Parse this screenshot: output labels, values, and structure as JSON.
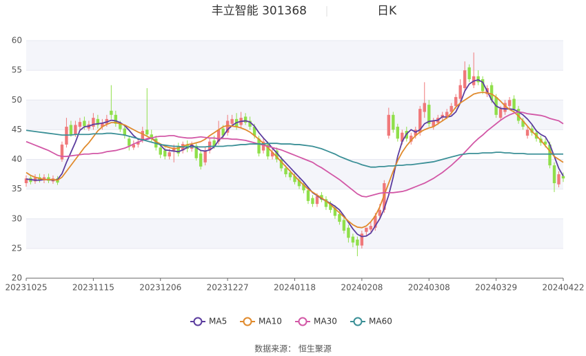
{
  "chart_data": {
    "type": "candlestick",
    "title": "丰立智能 301368",
    "subtitle": "日K",
    "source": "数据来源： 恒生聚源",
    "categories": [
      "20231025",
      null,
      null,
      null,
      null,
      null,
      null,
      null,
      null,
      null,
      null,
      null,
      null,
      null,
      null,
      "20231115",
      null,
      null,
      null,
      null,
      null,
      null,
      null,
      null,
      null,
      null,
      null,
      null,
      null,
      null,
      "20231206",
      null,
      null,
      null,
      null,
      null,
      null,
      null,
      null,
      null,
      null,
      null,
      null,
      null,
      null,
      "20231227",
      null,
      null,
      null,
      null,
      null,
      null,
      null,
      null,
      null,
      null,
      null,
      null,
      null,
      null,
      "20240118",
      null,
      null,
      null,
      null,
      null,
      null,
      null,
      null,
      null,
      null,
      null,
      null,
      null,
      null,
      "20240208",
      null,
      null,
      null,
      null,
      null,
      null,
      null,
      null,
      null,
      null,
      null,
      null,
      null,
      null,
      "20240308",
      null,
      null,
      null,
      null,
      null,
      null,
      null,
      null,
      null,
      null,
      null,
      null,
      null,
      null,
      "20240329",
      null,
      null,
      null,
      null,
      null,
      null,
      null,
      null,
      null,
      null,
      null,
      null,
      null,
      null,
      "20240422"
    ],
    "open": [
      36.0,
      36.9,
      36.3,
      37.0,
      36.5,
      37.0,
      36.3,
      36.8,
      40.0,
      42.5,
      45.8,
      44.2,
      45.5,
      46.5,
      45.2,
      45.5,
      46.8,
      45.5,
      46.0,
      48.2,
      47.5,
      46.0,
      45.2,
      43.5,
      42.0,
      42.5,
      43.2,
      45.0,
      44.2,
      43.5,
      42.0,
      41.5,
      40.5,
      41.5,
      42.2,
      41.5,
      42.5,
      41.8,
      42.3,
      41.0,
      39.5,
      41.5,
      43.2,
      43.0,
      45.2,
      44.5,
      46.0,
      46.8,
      45.8,
      47.2,
      46.5,
      45.5,
      43.5,
      41.5,
      42.5,
      40.5,
      41.5,
      40.0,
      38.5,
      37.8,
      37.2,
      36.5,
      35.8,
      34.8,
      33.5,
      32.5,
      34.0,
      33.3,
      32.5,
      31.8,
      30.8,
      29.8,
      28.5,
      27.0,
      26.5,
      25.5,
      27.8,
      28.2,
      28.5,
      30.5,
      31.5,
      44.0,
      47.5,
      45.5,
      43.0,
      44.8,
      43.0,
      44.0,
      44.5,
      48.0,
      49.2,
      45.5,
      46.2,
      47.0,
      47.2,
      48.0,
      49.0,
      50.2,
      52.0,
      55.5,
      52.5,
      54.0,
      53.5,
      51.0,
      52.5,
      50.5,
      47.0,
      48.0,
      49.0,
      50.2,
      48.5,
      46.5,
      44.0,
      45.2,
      44.5,
      43.5,
      43.0,
      42.5,
      39.0,
      35.8,
      37.2
    ],
    "close": [
      36.8,
      36.2,
      36.9,
      36.5,
      37.0,
      36.4,
      36.8,
      36.1,
      42.5,
      45.5,
      44.2,
      45.8,
      46.3,
      45.6,
      45.9,
      47.0,
      45.8,
      46.1,
      46.8,
      47.5,
      46.0,
      45.1,
      44.0,
      42.3,
      42.5,
      43.0,
      44.8,
      44.2,
      43.5,
      42.0,
      40.8,
      40.5,
      41.2,
      42.0,
      41.0,
      42.6,
      41.8,
      42.5,
      40.2,
      38.8,
      41.5,
      43.0,
      42.2,
      45.0,
      44.0,
      46.5,
      46.8,
      45.5,
      47.0,
      46.2,
      45.5,
      44.0,
      41.0,
      43.0,
      40.5,
      41.2,
      40.0,
      38.5,
      37.5,
      37.0,
      36.2,
      35.5,
      34.8,
      33.0,
      32.5,
      33.8,
      33.2,
      32.0,
      31.5,
      30.5,
      29.5,
      28.0,
      26.8,
      26.0,
      25.5,
      27.5,
      28.5,
      28.8,
      30.5,
      31.5,
      36.0,
      47.5,
      45.0,
      43.5,
      44.5,
      43.5,
      44.0,
      45.0,
      48.5,
      49.5,
      46.0,
      46.5,
      47.0,
      47.5,
      48.0,
      49.0,
      50.5,
      52.5,
      55.0,
      53.5,
      54.0,
      53.0,
      51.5,
      52.0,
      50.0,
      47.5,
      48.5,
      49.5,
      50.0,
      48.5,
      46.5,
      45.5,
      45.0,
      44.5,
      43.5,
      42.8,
      42.5,
      39.0,
      36.0,
      37.5,
      36.8
    ],
    "low": [
      35.4,
      35.8,
      35.9,
      36.1,
      36.0,
      36.0,
      35.9,
      35.7,
      39.6,
      42.0,
      43.8,
      43.8,
      45.0,
      45.0,
      44.8,
      45.0,
      45.2,
      45.0,
      45.5,
      46.8,
      45.5,
      44.6,
      43.5,
      41.5,
      41.6,
      42.0,
      42.8,
      43.8,
      43.0,
      41.5,
      40.2,
      40.0,
      40.0,
      39.5,
      40.5,
      41.0,
      41.2,
      41.3,
      39.8,
      38.3,
      39.0,
      41.0,
      41.8,
      42.5,
      43.5,
      44.0,
      45.5,
      45.0,
      45.3,
      45.8,
      45.0,
      43.5,
      40.5,
      41.0,
      40.0,
      40.0,
      39.5,
      38.0,
      37.0,
      36.5,
      35.8,
      35.0,
      34.3,
      32.5,
      32.0,
      32.0,
      32.8,
      31.5,
      31.0,
      30.0,
      29.0,
      27.5,
      26.0,
      25.2,
      23.7,
      25.0,
      27.0,
      27.8,
      28.0,
      30.0,
      31.0,
      43.5,
      44.5,
      43.0,
      42.5,
      43.0,
      42.5,
      43.5,
      44.0,
      47.0,
      45.5,
      45.0,
      45.8,
      46.5,
      46.8,
      47.5,
      48.5,
      49.8,
      51.5,
      53.0,
      52.0,
      52.5,
      51.0,
      50.5,
      49.5,
      47.0,
      46.5,
      47.5,
      48.5,
      48.0,
      46.0,
      45.0,
      43.5,
      44.0,
      43.0,
      42.3,
      42.0,
      38.5,
      34.5,
      35.3,
      36.2
    ],
    "high": [
      37.3,
      37.4,
      37.5,
      37.6,
      37.5,
      37.6,
      37.3,
      37.2,
      43.0,
      47.0,
      46.5,
      46.5,
      47.0,
      47.2,
      46.5,
      47.8,
      47.5,
      46.8,
      47.5,
      52.5,
      48.2,
      46.5,
      45.8,
      44.0,
      43.2,
      43.6,
      45.5,
      52.0,
      45.0,
      44.0,
      42.5,
      42.0,
      41.8,
      42.5,
      42.8,
      43.0,
      43.2,
      43.0,
      42.8,
      41.5,
      42.0,
      43.5,
      44.0,
      46.5,
      45.8,
      47.5,
      47.5,
      47.8,
      48.0,
      47.8,
      47.2,
      46.0,
      44.0,
      43.5,
      43.0,
      41.8,
      42.0,
      40.5,
      39.0,
      38.2,
      37.8,
      37.0,
      36.3,
      35.3,
      34.0,
      34.3,
      34.5,
      33.8,
      33.0,
      32.3,
      31.3,
      30.3,
      29.0,
      27.5,
      27.0,
      28.0,
      28.5,
      29.5,
      31.0,
      32.5,
      36.5,
      48.7,
      48.0,
      46.0,
      45.0,
      45.5,
      44.5,
      45.5,
      49.0,
      53.0,
      50.0,
      47.0,
      47.5,
      48.0,
      48.5,
      49.5,
      51.0,
      53.5,
      56.5,
      56.0,
      58.0,
      55.0,
      54.0,
      52.5,
      53.0,
      51.0,
      49.0,
      50.0,
      50.5,
      50.8,
      49.0,
      47.0,
      45.5,
      45.8,
      45.0,
      44.0,
      43.5,
      43.0,
      39.5,
      38.0,
      37.8
    ],
    "up_color": "#f0787a",
    "down_color": "#8fdf4a",
    "series": [
      {
        "name": "MA5",
        "color": "#5b3c9e",
        "values": [
          36.7,
          36.6,
          36.5,
          36.5,
          36.6,
          36.6,
          36.5,
          36.6,
          37.6,
          39.5,
          41.2,
          42.9,
          44.9,
          45.5,
          45.6,
          45.9,
          46.0,
          46.1,
          46.3,
          46.6,
          46.5,
          46.2,
          45.7,
          44.9,
          44.0,
          43.4,
          43.3,
          43.4,
          43.6,
          43.0,
          42.4,
          41.6,
          41.5,
          41.4,
          41.3,
          41.6,
          42.0,
          42.4,
          42.0,
          41.5,
          41.4,
          41.6,
          42.1,
          43.2,
          43.9,
          45.0,
          45.7,
          46.2,
          46.4,
          46.5,
          46.3,
          45.6,
          44.5,
          43.6,
          42.8,
          41.9,
          41.1,
          40.2,
          39.4,
          38.6,
          37.8,
          37.0,
          36.2,
          35.3,
          34.4,
          33.9,
          33.4,
          33.0,
          32.6,
          32.1,
          31.5,
          30.5,
          29.4,
          28.3,
          27.4,
          27.0,
          27.1,
          27.6,
          28.8,
          30.0,
          31.7,
          34.0,
          37.0,
          40.5,
          43.0,
          44.3,
          45.0,
          44.6,
          45.0,
          46.0,
          46.4,
          46.5,
          46.6,
          47.2,
          47.1,
          47.3,
          48.0,
          49.5,
          51.5,
          52.7,
          53.2,
          53.4,
          53.0,
          51.5,
          50.0,
          49.0,
          48.6,
          48.5,
          48.5,
          48.4,
          48.0,
          47.5,
          46.8,
          45.9,
          44.8,
          44.2,
          43.8,
          42.5,
          40.5,
          38.5,
          37.2
        ]
      },
      {
        "name": "MA10",
        "color": "#e08a2c",
        "values": [
          37.8,
          37.3,
          37.0,
          36.8,
          36.6,
          36.6,
          36.6,
          36.5,
          37.0,
          38.0,
          39.0,
          40.0,
          41.0,
          42.0,
          42.8,
          43.8,
          44.8,
          45.5,
          45.9,
          46.2,
          46.2,
          46.0,
          45.8,
          45.4,
          45.0,
          44.6,
          44.3,
          43.9,
          43.5,
          43.0,
          42.6,
          42.2,
          42.0,
          41.8,
          41.9,
          42.2,
          42.5,
          42.6,
          42.8,
          43.0,
          43.4,
          44.0,
          44.5,
          45.0,
          45.5,
          45.7,
          45.6,
          45.5,
          45.3,
          45.0,
          44.6,
          44.0,
          43.4,
          42.7,
          42.0,
          41.2,
          40.4,
          39.6,
          38.8,
          38.0,
          37.2,
          36.4,
          35.7,
          35.0,
          34.5,
          34.0,
          33.5,
          33.0,
          32.4,
          31.7,
          31.0,
          30.3,
          29.6,
          29.0,
          28.6,
          28.5,
          28.8,
          29.5,
          30.5,
          32.0,
          34.0,
          36.0,
          38.0,
          39.8,
          41.2,
          42.3,
          43.2,
          44.0,
          44.6,
          45.0,
          45.3,
          45.5,
          46.0,
          46.5,
          47.0,
          47.8,
          48.8,
          49.5,
          50.0,
          50.5,
          51.0,
          51.2,
          51.3,
          51.2,
          51.0,
          50.5,
          49.8,
          49.0,
          48.4,
          48.0,
          47.3,
          46.5,
          45.6,
          44.7,
          44.0,
          43.2,
          42.3,
          41.4,
          40.5,
          40.0,
          39.5
        ]
      },
      {
        "name": "MA30",
        "color": "#d257a6",
        "values": [
          43.0,
          42.7,
          42.4,
          42.1,
          41.8,
          41.5,
          41.1,
          40.7,
          40.5,
          40.5,
          40.6,
          40.7,
          40.8,
          40.9,
          40.9,
          41.0,
          41.0,
          41.1,
          41.3,
          41.4,
          41.5,
          41.7,
          41.9,
          42.2,
          42.6,
          42.9,
          43.2,
          43.5,
          43.6,
          43.8,
          43.9,
          43.9,
          44.0,
          44.0,
          43.8,
          43.7,
          43.6,
          43.6,
          43.7,
          43.8,
          43.7,
          43.6,
          43.6,
          43.5,
          43.5,
          43.5,
          43.4,
          43.4,
          43.3,
          43.2,
          43.0,
          42.8,
          42.6,
          42.4,
          42.2,
          42.0,
          41.8,
          41.6,
          41.3,
          41.0,
          40.7,
          40.4,
          40.1,
          39.8,
          39.5,
          39.0,
          38.6,
          38.1,
          37.6,
          37.1,
          36.6,
          36.0,
          35.4,
          34.8,
          34.2,
          33.8,
          33.7,
          33.9,
          34.1,
          34.3,
          34.4,
          34.4,
          34.4,
          34.5,
          34.6,
          34.8,
          35.1,
          35.4,
          35.7,
          36.0,
          36.4,
          36.8,
          37.3,
          37.8,
          38.4,
          39.0,
          39.7,
          40.4,
          41.2,
          42.0,
          42.8,
          43.5,
          44.1,
          44.8,
          45.4,
          46.0,
          46.6,
          47.1,
          47.5,
          47.8,
          48.0,
          47.9,
          47.7,
          47.6,
          47.5,
          47.4,
          47.2,
          46.9,
          46.7,
          46.5,
          46.0
        ]
      },
      {
        "name": "MA60",
        "color": "#3a8f96",
        "values": [
          44.9,
          44.8,
          44.7,
          44.6,
          44.5,
          44.4,
          44.3,
          44.2,
          44.1,
          44.1,
          44.1,
          44.2,
          44.2,
          44.2,
          44.2,
          44.3,
          44.3,
          44.3,
          44.4,
          44.4,
          44.3,
          44.2,
          44.1,
          43.9,
          43.7,
          43.5,
          43.3,
          43.1,
          42.9,
          42.7,
          42.5,
          42.4,
          42.3,
          42.2,
          42.2,
          42.1,
          42.1,
          42.1,
          42.1,
          42.1,
          42.1,
          42.2,
          42.2,
          42.2,
          42.2,
          42.3,
          42.3,
          42.4,
          42.5,
          42.5,
          42.6,
          42.6,
          42.6,
          42.6,
          42.7,
          42.7,
          42.7,
          42.6,
          42.6,
          42.6,
          42.5,
          42.5,
          42.4,
          42.3,
          42.2,
          42.0,
          41.8,
          41.5,
          41.2,
          40.9,
          40.5,
          40.2,
          39.9,
          39.6,
          39.4,
          39.1,
          38.9,
          38.7,
          38.7,
          38.8,
          38.8,
          38.9,
          38.9,
          39.0,
          39.0,
          39.1,
          39.1,
          39.2,
          39.3,
          39.4,
          39.5,
          39.6,
          39.8,
          40.0,
          40.2,
          40.4,
          40.6,
          40.8,
          40.9,
          41.0,
          41.0,
          41.0,
          41.1,
          41.1,
          41.1,
          41.2,
          41.2,
          41.1,
          41.1,
          41.0,
          41.0,
          41.0,
          40.9,
          40.9,
          40.9,
          40.9,
          40.9,
          40.9,
          40.9,
          40.9,
          40.9
        ]
      }
    ],
    "ylim": [
      20,
      60
    ],
    "yticks": [
      20,
      25,
      30,
      35,
      40,
      45,
      50,
      55,
      60
    ],
    "grid": true
  }
}
